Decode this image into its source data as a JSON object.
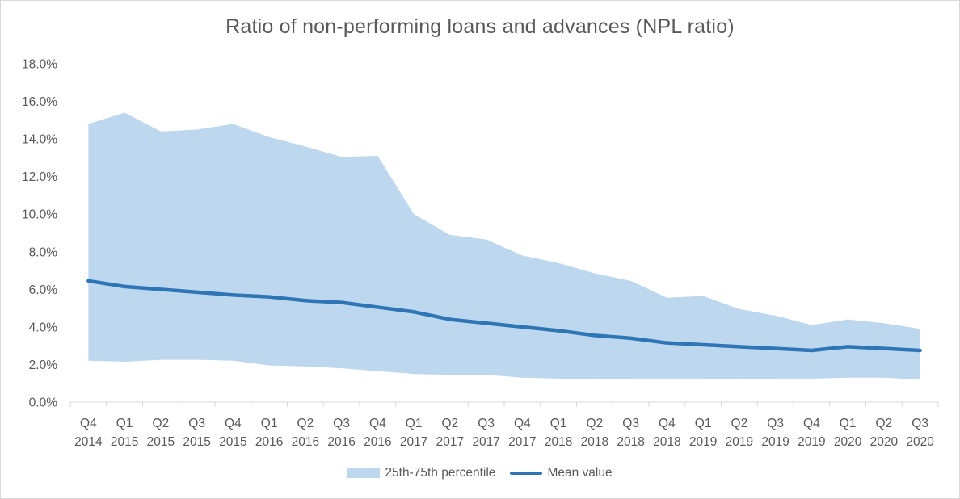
{
  "chart_data": {
    "type": "area",
    "title": "Ratio of non-performing loans and advances (NPL ratio)",
    "xlabel": "",
    "ylabel": "",
    "categories": [
      [
        "Q4",
        "2014"
      ],
      [
        "Q1",
        "2015"
      ],
      [
        "Q2",
        "2015"
      ],
      [
        "Q3",
        "2015"
      ],
      [
        "Q4",
        "2015"
      ],
      [
        "Q1",
        "2016"
      ],
      [
        "Q2",
        "2016"
      ],
      [
        "Q3",
        "2016"
      ],
      [
        "Q4",
        "2016"
      ],
      [
        "Q1",
        "2017"
      ],
      [
        "Q2",
        "2017"
      ],
      [
        "Q3",
        "2017"
      ],
      [
        "Q4",
        "2017"
      ],
      [
        "Q1",
        "2018"
      ],
      [
        "Q2",
        "2018"
      ],
      [
        "Q3",
        "2018"
      ],
      [
        "Q4",
        "2018"
      ],
      [
        "Q1",
        "2019"
      ],
      [
        "Q2",
        "2019"
      ],
      [
        "Q3",
        "2019"
      ],
      [
        "Q4",
        "2019"
      ],
      [
        "Q1",
        "2020"
      ],
      [
        "Q2",
        "2020"
      ],
      [
        "Q3",
        "2020"
      ]
    ],
    "ylim": [
      0,
      18
    ],
    "y_ticks": [
      "0.0%",
      "2.0%",
      "4.0%",
      "6.0%",
      "8.0%",
      "10.0%",
      "12.0%",
      "14.0%",
      "16.0%",
      "18.0%"
    ],
    "y_tick_values": [
      0,
      2,
      4,
      6,
      8,
      10,
      12,
      14,
      16,
      18
    ],
    "grid": false,
    "legend_position": "bottom",
    "series": [
      {
        "name": "25th-75th percentile",
        "kind": "band",
        "color": "#bdd7ee",
        "lower": [
          2.2,
          2.15,
          2.25,
          2.25,
          2.2,
          1.95,
          1.9,
          1.8,
          1.65,
          1.5,
          1.45,
          1.45,
          1.3,
          1.25,
          1.2,
          1.25,
          1.25,
          1.25,
          1.2,
          1.25,
          1.25,
          1.3,
          1.3,
          1.2
        ],
        "upper": [
          14.8,
          15.4,
          14.4,
          14.5,
          14.8,
          14.1,
          13.6,
          13.05,
          13.1,
          10.0,
          8.9,
          8.65,
          7.8,
          7.4,
          6.85,
          6.45,
          5.55,
          5.65,
          4.95,
          4.6,
          4.1,
          4.4,
          4.2,
          3.9
        ]
      },
      {
        "name": "Mean value",
        "kind": "line",
        "color": "#2e75b6",
        "values": [
          6.45,
          6.15,
          6.0,
          5.85,
          5.7,
          5.6,
          5.4,
          5.3,
          5.05,
          4.8,
          4.4,
          4.2,
          4.0,
          3.8,
          3.55,
          3.4,
          3.15,
          3.05,
          2.95,
          2.85,
          2.75,
          2.95,
          2.85,
          2.75
        ]
      }
    ]
  }
}
